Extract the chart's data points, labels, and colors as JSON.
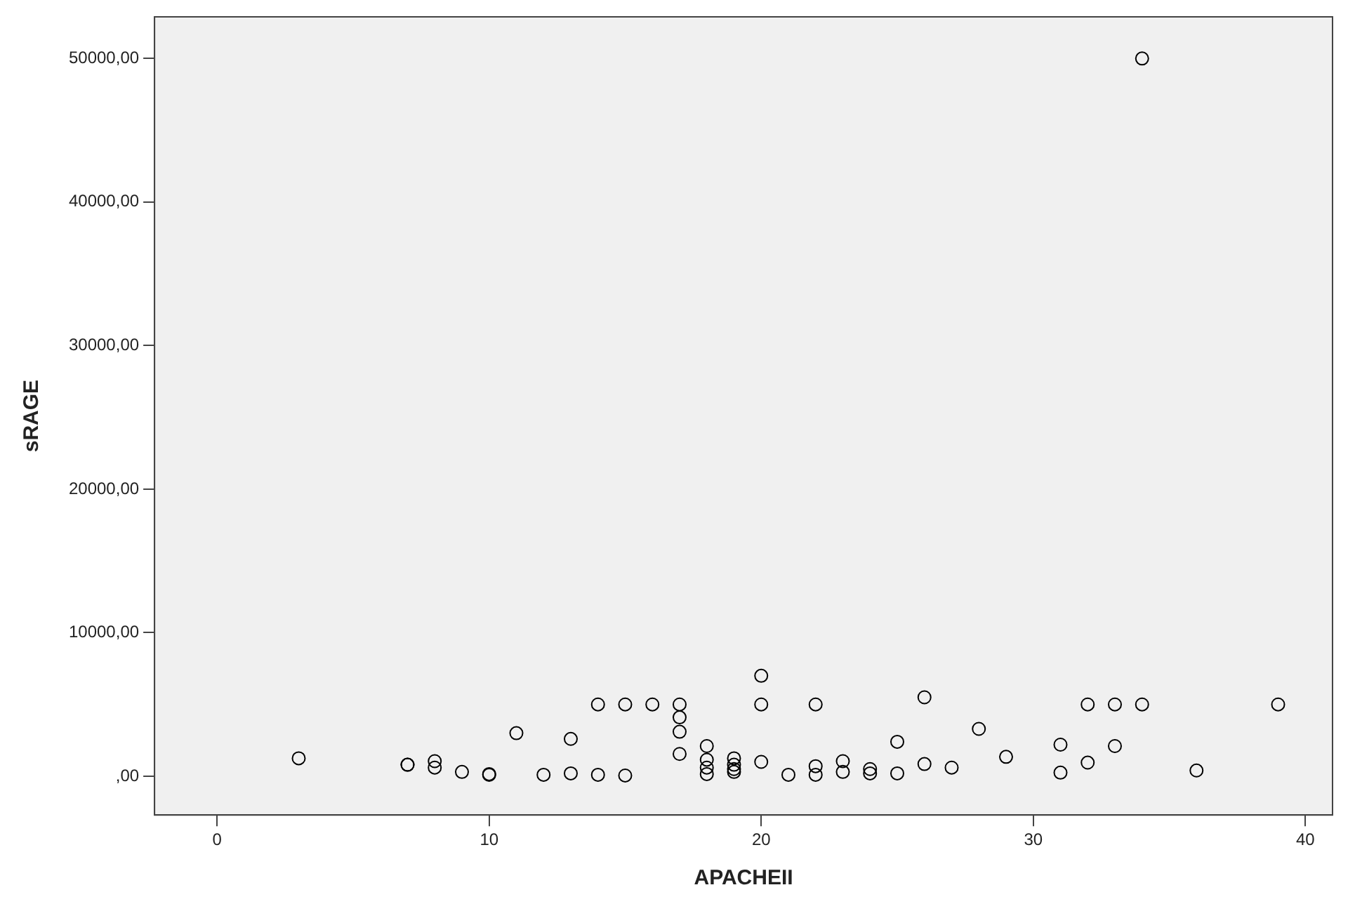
{
  "chart_data": {
    "type": "scatter",
    "xlabel": "APACHEII",
    "ylabel": "sRAGE",
    "marker": "circle",
    "grid": false,
    "legend": false,
    "x": [
      3,
      7,
      7,
      8,
      8,
      9,
      10,
      10,
      11,
      12,
      13,
      13,
      14,
      14,
      15,
      15,
      16,
      17,
      17,
      17,
      17,
      18,
      18,
      18,
      18,
      19,
      19,
      19,
      19,
      20,
      20,
      20,
      21,
      22,
      22,
      22,
      23,
      23,
      24,
      24,
      25,
      25,
      26,
      26,
      27,
      28,
      29,
      31,
      31,
      32,
      32,
      33,
      33,
      34,
      34,
      36,
      39
    ],
    "series": [
      {
        "color": "#000000",
        "values": [
          1250,
          800,
          800,
          1050,
          600,
          300,
          100,
          150,
          3000,
          100,
          2600,
          200,
          5000,
          100,
          5000,
          50,
          5000,
          5000,
          4100,
          3100,
          1550,
          2100,
          1150,
          600,
          150,
          1250,
          800,
          500,
          300,
          7000,
          5000,
          1000,
          100,
          5000,
          700,
          100,
          1050,
          300,
          500,
          200,
          2400,
          200,
          5500,
          850,
          600,
          3300,
          1350,
          2200,
          250,
          5000,
          950,
          5000,
          2100,
          5000,
          50000,
          400,
          5000
        ]
      }
    ],
    "xlim": [
      -2.3,
      41
    ],
    "ylim": [
      -2700,
      52900
    ],
    "xticks": [
      0,
      10,
      20,
      30,
      40
    ],
    "yticks": [
      {
        "value": 0,
        "label": ",00"
      },
      {
        "value": 10000,
        "label": "10000,00"
      },
      {
        "value": 20000,
        "label": "20000,00"
      },
      {
        "value": 30000,
        "label": "30000,00"
      },
      {
        "value": 40000,
        "label": "40000,00"
      },
      {
        "value": 50000,
        "label": "50000,00"
      }
    ]
  }
}
